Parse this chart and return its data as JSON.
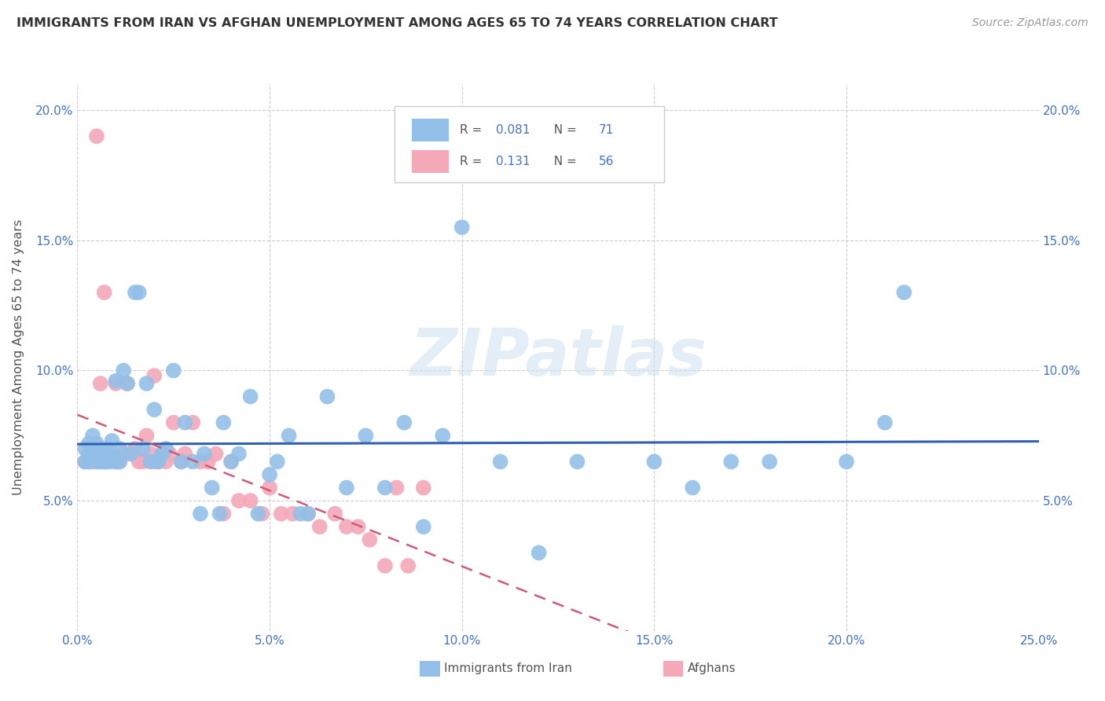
{
  "title": "IMMIGRANTS FROM IRAN VS AFGHAN UNEMPLOYMENT AMONG AGES 65 TO 74 YEARS CORRELATION CHART",
  "source": "Source: ZipAtlas.com",
  "ylabel": "Unemployment Among Ages 65 to 74 years",
  "xlim": [
    0.0,
    0.25
  ],
  "ylim": [
    0.0,
    0.21
  ],
  "xticks": [
    0.0,
    0.05,
    0.1,
    0.15,
    0.2,
    0.25
  ],
  "yticks": [
    0.0,
    0.05,
    0.1,
    0.15,
    0.2
  ],
  "xticklabels": [
    "0.0%",
    "5.0%",
    "10.0%",
    "15.0%",
    "20.0%",
    "25.0%"
  ],
  "yticklabels": [
    "",
    "5.0%",
    "10.0%",
    "15.0%",
    "20.0%"
  ],
  "iran_color": "#92c0e8",
  "afghan_color": "#f4a8b8",
  "iran_line_color": "#3060b0",
  "afghan_line_color": "#d05878",
  "tick_color": "#4472c4",
  "title_color": "#333333",
  "source_color": "#999999",
  "watermark": "ZIPatlas",
  "iran_R": "0.081",
  "iran_N": "71",
  "afghan_R": "0.131",
  "afghan_N": "56",
  "legend_label_iran": "Immigrants from Iran",
  "legend_label_afghan": "Afghans",
  "iran_x": [
    0.002,
    0.002,
    0.003,
    0.003,
    0.003,
    0.004,
    0.004,
    0.004,
    0.005,
    0.005,
    0.005,
    0.006,
    0.006,
    0.007,
    0.007,
    0.008,
    0.008,
    0.009,
    0.009,
    0.01,
    0.01,
    0.011,
    0.011,
    0.012,
    0.013,
    0.014,
    0.015,
    0.016,
    0.017,
    0.018,
    0.019,
    0.02,
    0.021,
    0.022,
    0.023,
    0.025,
    0.027,
    0.028,
    0.03,
    0.032,
    0.033,
    0.035,
    0.037,
    0.038,
    0.04,
    0.042,
    0.045,
    0.047,
    0.05,
    0.052,
    0.055,
    0.058,
    0.06,
    0.065,
    0.07,
    0.075,
    0.08,
    0.085,
    0.09,
    0.095,
    0.1,
    0.11,
    0.12,
    0.13,
    0.15,
    0.16,
    0.17,
    0.18,
    0.2,
    0.21,
    0.215
  ],
  "iran_y": [
    0.065,
    0.07,
    0.065,
    0.068,
    0.072,
    0.066,
    0.07,
    0.075,
    0.065,
    0.068,
    0.072,
    0.065,
    0.07,
    0.065,
    0.068,
    0.065,
    0.07,
    0.068,
    0.073,
    0.065,
    0.096,
    0.065,
    0.07,
    0.1,
    0.095,
    0.068,
    0.13,
    0.13,
    0.07,
    0.095,
    0.065,
    0.085,
    0.065,
    0.068,
    0.07,
    0.1,
    0.065,
    0.08,
    0.065,
    0.045,
    0.068,
    0.055,
    0.045,
    0.08,
    0.065,
    0.068,
    0.09,
    0.045,
    0.06,
    0.065,
    0.075,
    0.045,
    0.045,
    0.09,
    0.055,
    0.075,
    0.055,
    0.08,
    0.04,
    0.075,
    0.155,
    0.065,
    0.03,
    0.065,
    0.065,
    0.055,
    0.065,
    0.065,
    0.065,
    0.08,
    0.13
  ],
  "afghan_x": [
    0.002,
    0.003,
    0.003,
    0.004,
    0.004,
    0.005,
    0.005,
    0.006,
    0.006,
    0.007,
    0.007,
    0.008,
    0.008,
    0.009,
    0.01,
    0.01,
    0.011,
    0.012,
    0.013,
    0.014,
    0.015,
    0.016,
    0.017,
    0.018,
    0.019,
    0.02,
    0.02,
    0.021,
    0.022,
    0.023,
    0.024,
    0.025,
    0.027,
    0.028,
    0.03,
    0.032,
    0.034,
    0.036,
    0.038,
    0.04,
    0.042,
    0.045,
    0.048,
    0.05,
    0.053,
    0.056,
    0.06,
    0.063,
    0.067,
    0.07,
    0.073,
    0.076,
    0.08,
    0.083,
    0.086,
    0.09
  ],
  "afghan_y": [
    0.065,
    0.065,
    0.068,
    0.065,
    0.068,
    0.19,
    0.065,
    0.095,
    0.065,
    0.13,
    0.065,
    0.065,
    0.068,
    0.065,
    0.065,
    0.095,
    0.065,
    0.068,
    0.095,
    0.068,
    0.07,
    0.065,
    0.065,
    0.075,
    0.068,
    0.065,
    0.098,
    0.065,
    0.068,
    0.065,
    0.068,
    0.08,
    0.065,
    0.068,
    0.08,
    0.065,
    0.065,
    0.068,
    0.045,
    0.065,
    0.05,
    0.05,
    0.045,
    0.055,
    0.045,
    0.045,
    0.045,
    0.04,
    0.045,
    0.04,
    0.04,
    0.035,
    0.025,
    0.055,
    0.025,
    0.055
  ]
}
